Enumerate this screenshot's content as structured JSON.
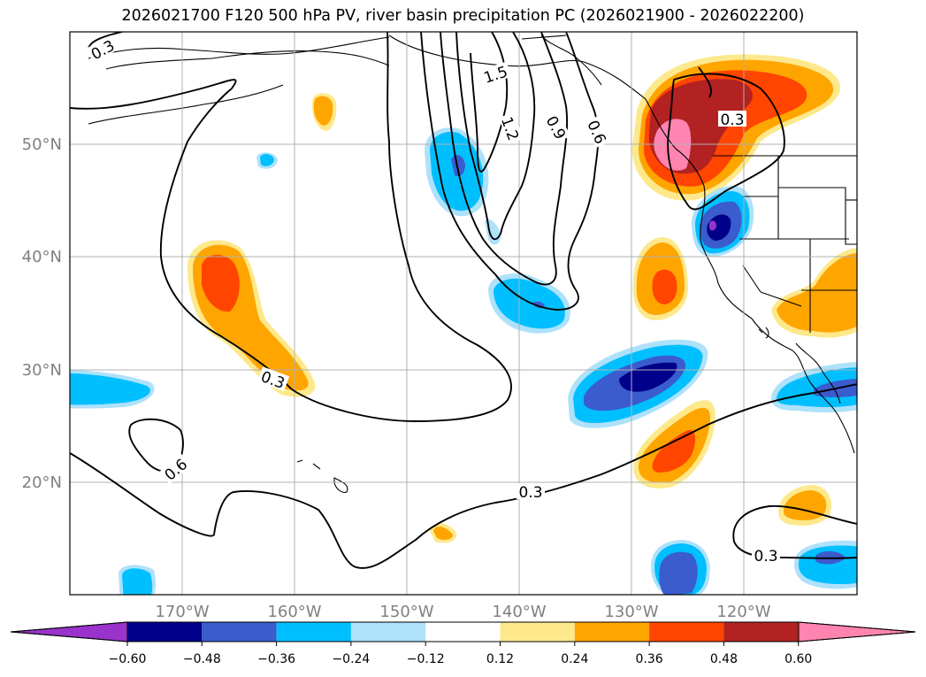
{
  "title": "2026021700 F120 500 hPa PV, river basin precipitation PC (2026021900 - 2026022200)",
  "map": {
    "lon_labels": [
      "170°W",
      "160°W",
      "150°W",
      "140°W",
      "130°W",
      "120°W"
    ],
    "lat_labels": [
      "20°N",
      "30°N",
      "40°N",
      "50°N"
    ],
    "contour_labels": [
      "0.3",
      "1.5",
      "1.2",
      "0.9",
      "0.6",
      "0.3",
      "0.3",
      "0.6",
      "0.3",
      "0.3"
    ]
  },
  "colorbar": {
    "ticks": [
      "−0.60",
      "−0.48",
      "−0.36",
      "−0.24",
      "−0.12",
      "0.12",
      "0.24",
      "0.36",
      "0.48",
      "0.60"
    ],
    "colors": [
      "#9933cc",
      "#00008b",
      "#3a5ccc",
      "#00bfff",
      "#aee1fa",
      "#ffffff",
      "#fde98c",
      "#ffa500",
      "#ff4500",
      "#b22222",
      "#ff85b0"
    ]
  },
  "colors": {
    "dark_red": "#b22222",
    "orange_red": "#ff4500",
    "orange": "#ffa500",
    "light_yellow": "#fde98c",
    "pink": "#ff85b0",
    "navy": "#00008b",
    "royal_blue": "#3a5ccc",
    "deep_sky": "#00bfff",
    "light_blue": "#aee1fa",
    "purple": "#9933cc"
  }
}
